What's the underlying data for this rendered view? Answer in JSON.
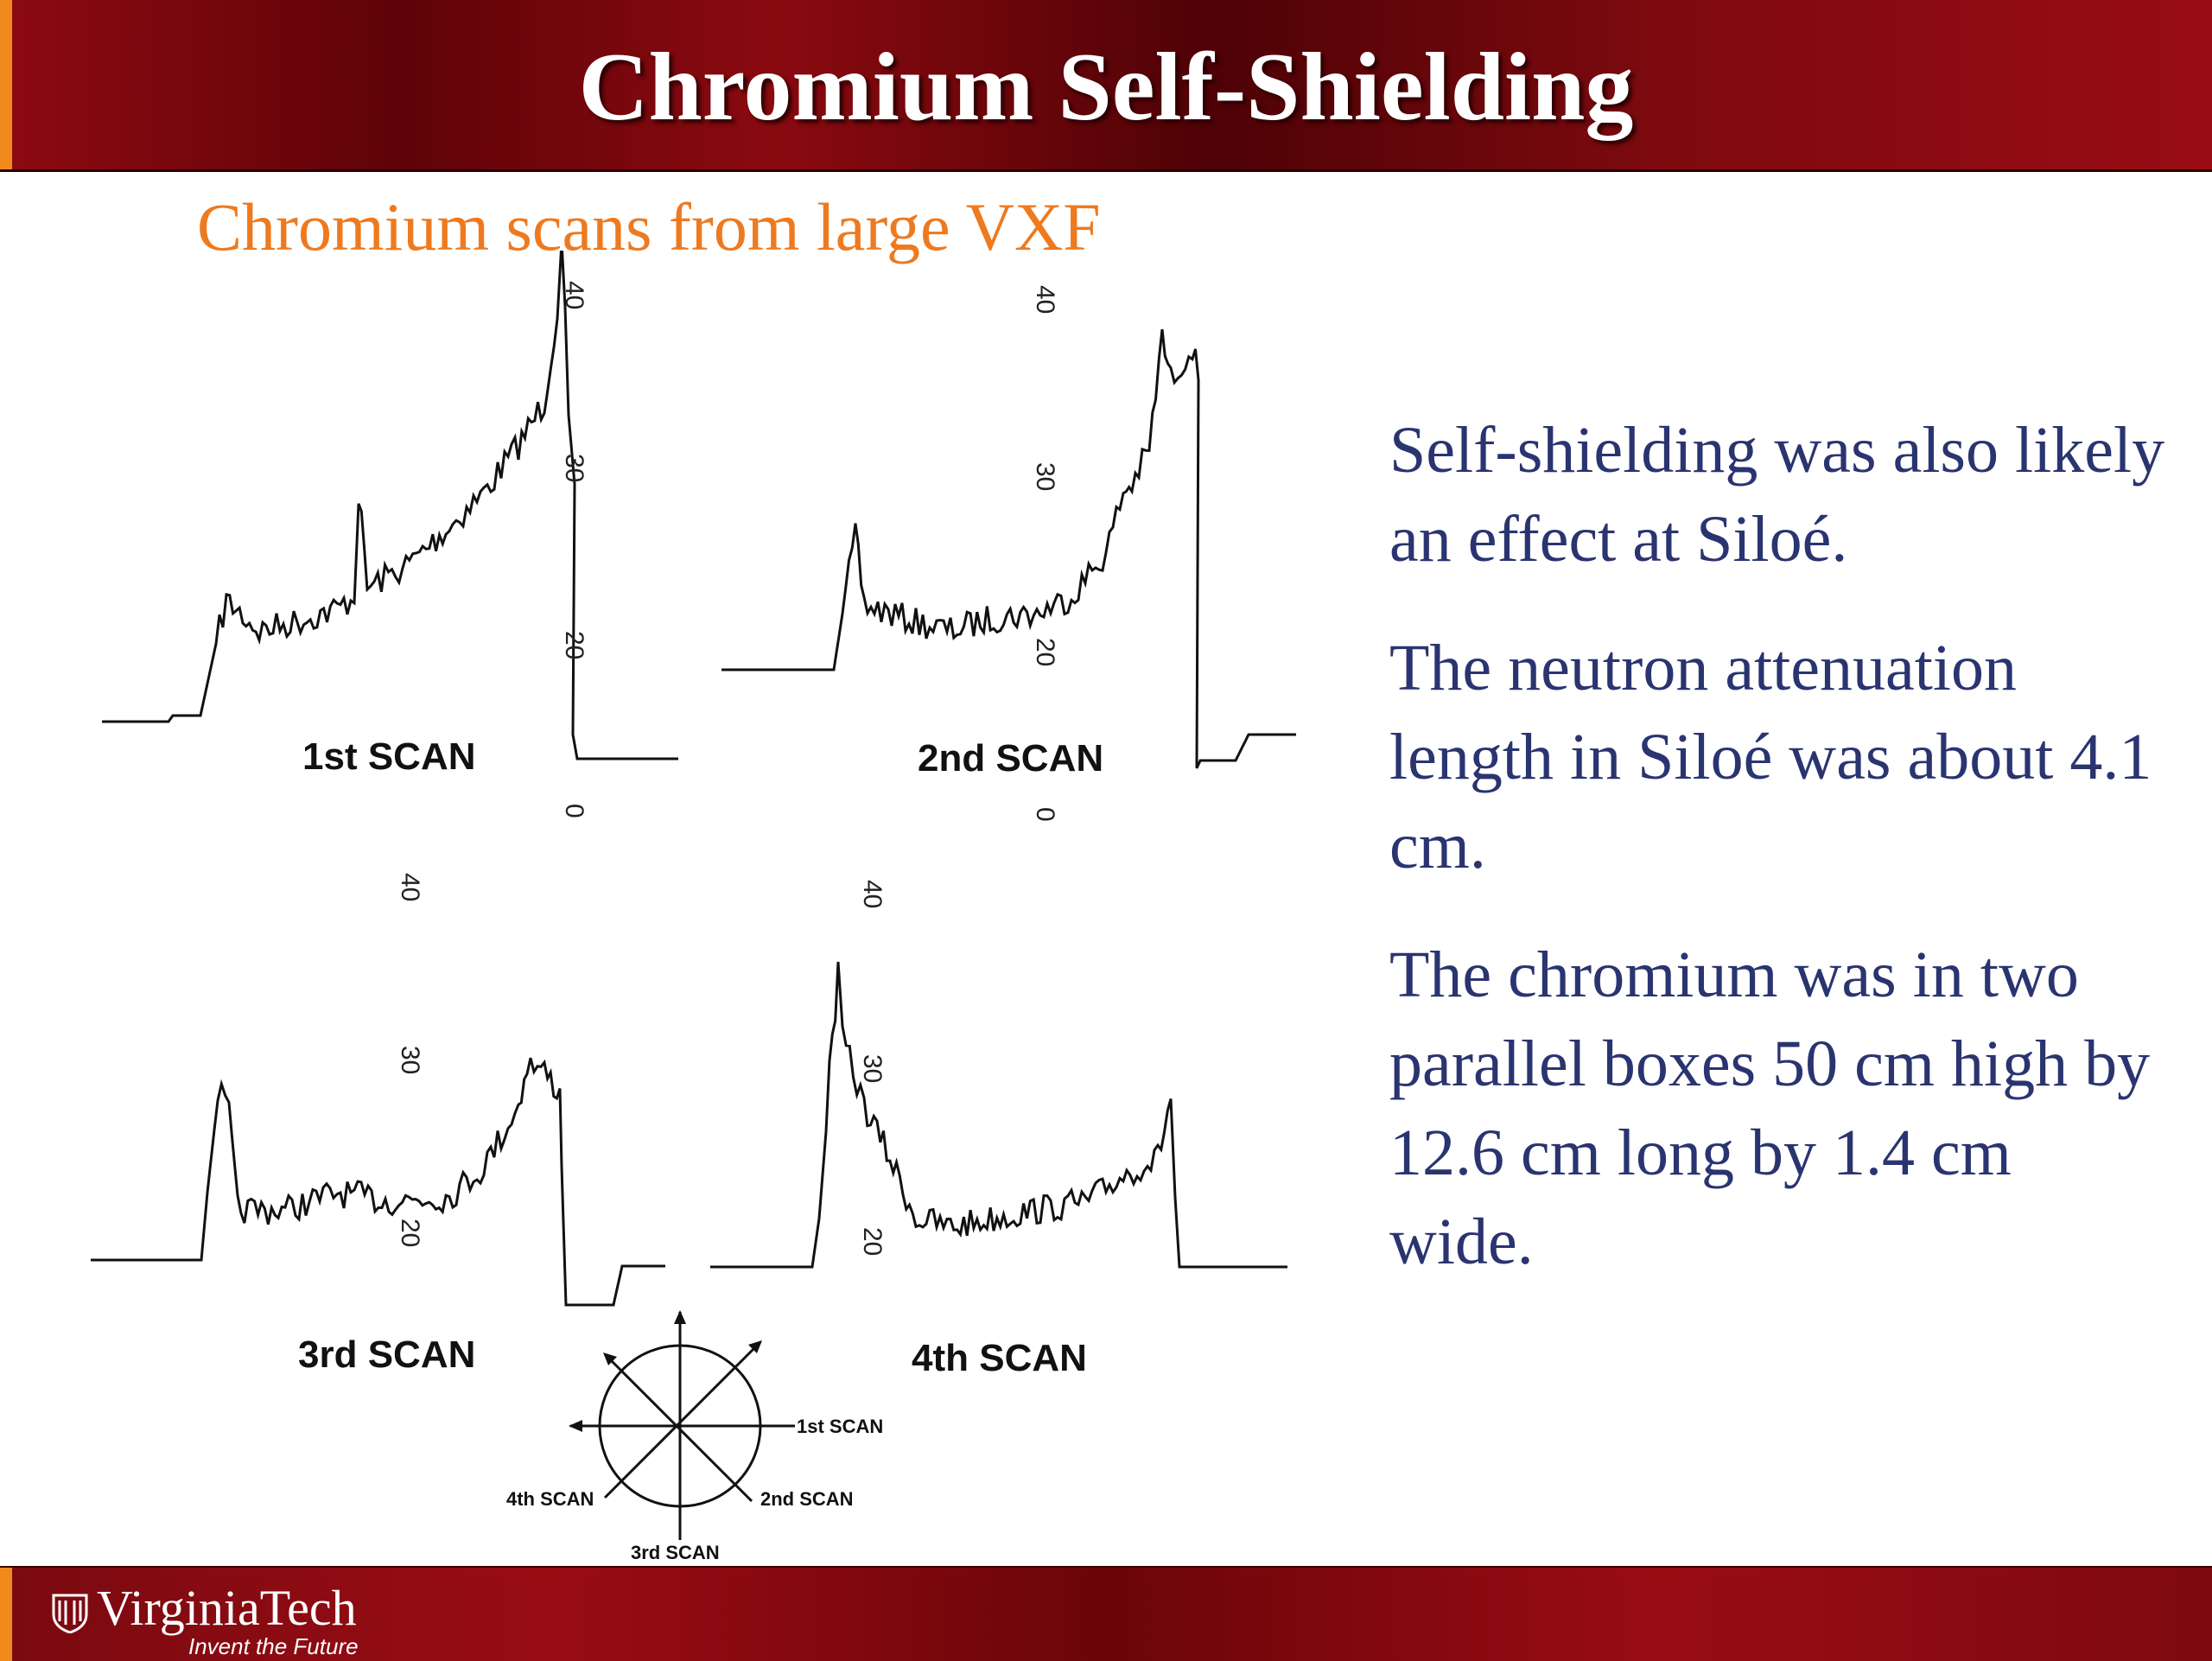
{
  "header": {
    "title": "Chromium Self-Shielding"
  },
  "subtitle": "Chromium scans from large VXF",
  "figure": {
    "scans": [
      {
        "label": "1st SCAN",
        "axis_ticks": [
          "40",
          "30",
          "20",
          "0"
        ]
      },
      {
        "label": "2nd SCAN",
        "axis_ticks": [
          "40",
          "30",
          "20",
          "0"
        ]
      },
      {
        "label": "3rd SCAN",
        "axis_ticks": [
          "40",
          "30",
          "20"
        ]
      },
      {
        "label": "4th SCAN",
        "axis_ticks": [
          "40",
          "30",
          "20"
        ]
      }
    ],
    "compass": {
      "labels": [
        "1st SCAN",
        "2nd SCAN",
        "3rd SCAN",
        "4th SCAN"
      ]
    }
  },
  "body": {
    "paragraphs": [
      "Self-shielding was also likely an effect at Siloé.",
      "The neutron attenuation length in Siloé was about 4.1 cm.",
      "The chromium was in two parallel boxes 50 cm high by 12.6 cm long by 1.4 cm wide."
    ]
  },
  "footer": {
    "logo_name": "VirginiaTech",
    "logo_tagline": "Invent the Future"
  },
  "colors": {
    "header_red": "#7a0a10",
    "accent_orange": "#ee7a20",
    "body_text": "#2a3470"
  },
  "icons": [
    "virginia-tech-shield-icon"
  ]
}
